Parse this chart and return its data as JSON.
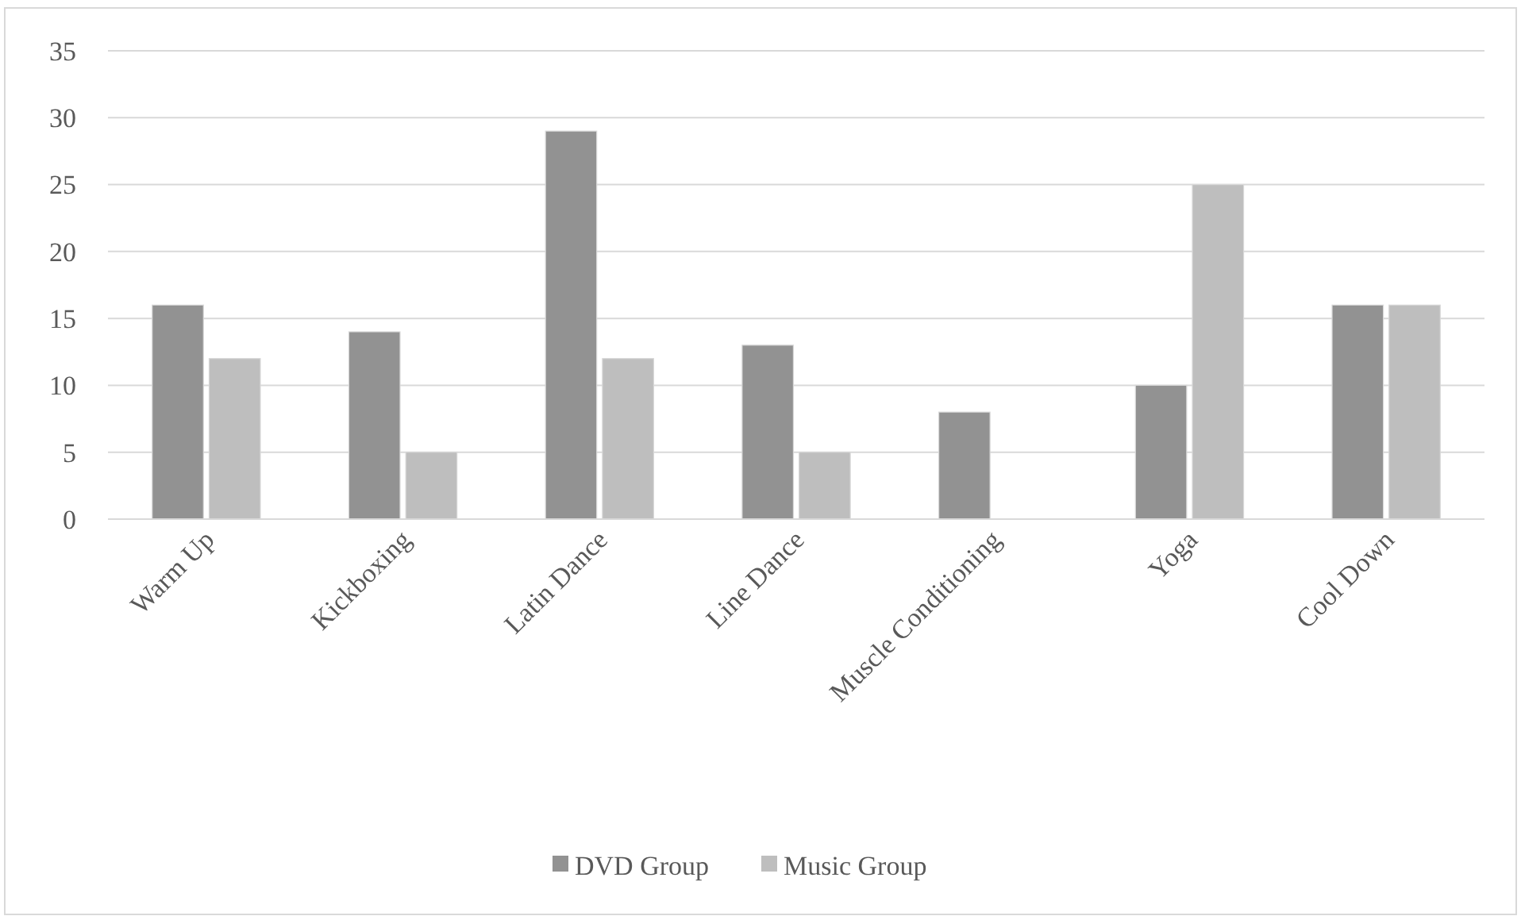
{
  "chart_data": {
    "type": "bar",
    "categories": [
      "Warm Up",
      "Kickboxing",
      "Latin Dance",
      "Line Dance",
      "Muscle Conditioning",
      "Yoga",
      "Cool Down"
    ],
    "series": [
      {
        "name": "DVD Group",
        "color": "#929292",
        "values": [
          16,
          14,
          29,
          13,
          8,
          10,
          16
        ]
      },
      {
        "name": "Music Group",
        "color": "#bebebe",
        "values": [
          12,
          5,
          12,
          5,
          0,
          25,
          16
        ]
      }
    ],
    "ylim": [
      0,
      35
    ],
    "yticks": [
      0,
      5,
      10,
      15,
      20,
      25,
      30,
      35
    ],
    "grid": "y",
    "legend": "bottom"
  }
}
